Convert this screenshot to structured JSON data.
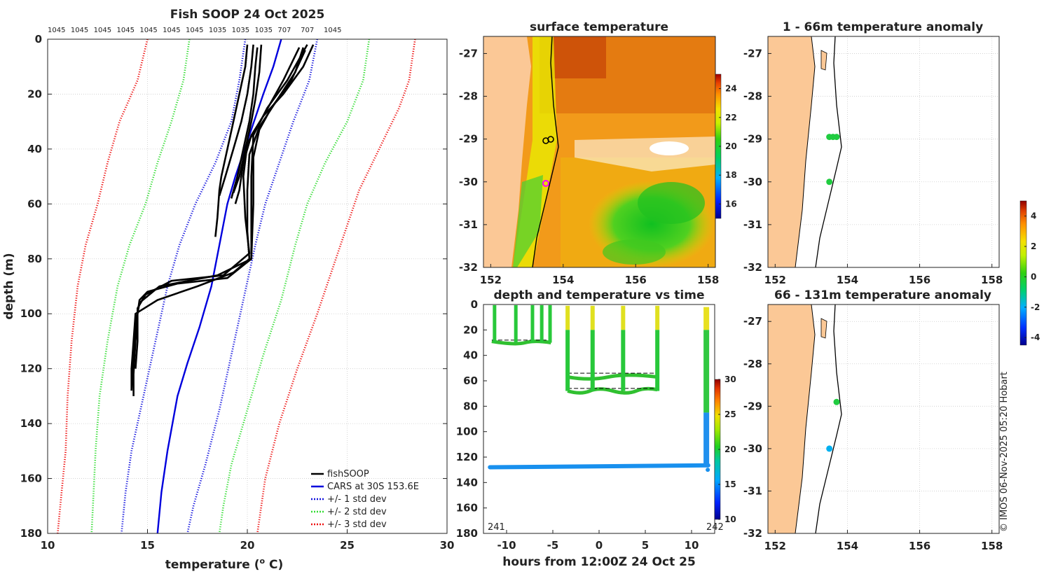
{
  "profile_panel": {
    "title": "Fish SOOP 24 Oct 2025",
    "xlabel": "temperature (",
    "xlabel_sup": "o",
    "xlabel_end": " C)",
    "ylabel": "depth (m)",
    "top_labels": [
      "1045",
      "1045",
      "1045",
      "1045",
      "1045",
      "1045",
      "1045",
      "1035",
      "1035",
      "1035",
      "707",
      "707",
      "1045"
    ],
    "legend": {
      "fishsoop": "fishSOOP",
      "cars": "CARS at 30S 153.6E",
      "std1": "+/- 1 std dev",
      "std2": "+/- 2 std dev",
      "std3": "+/- 3 std dev"
    }
  },
  "sst_panel": {
    "title": "surface temperature"
  },
  "anom1_panel": {
    "title": "1 - 66m temperature anomaly"
  },
  "anom2_panel": {
    "title": "66 - 131m temperature anomaly"
  },
  "time_panel": {
    "title": "depth and temperature vs time",
    "xlabel": "hours from 12:00Z 24 Oct 25",
    "day_start": "241",
    "day_end": "242"
  },
  "footer": {
    "credit": "© IMOS 06-Nov-2025 05:20 Hobart"
  },
  "colors": {
    "fishsoop": "#000000",
    "cars": "#0000dd",
    "std1": "#1010dd",
    "std2": "#33dd33",
    "std3": "#ee1111",
    "land": "#fbc896",
    "coast": "#000000"
  },
  "chart_data": [
    {
      "type": "line",
      "name": "temperature-profiles",
      "xlabel": "temperature (o C)",
      "ylabel": "depth (m)",
      "xlim": [
        10,
        30
      ],
      "ylim": [
        0,
        180
      ],
      "xticks": [
        10,
        15,
        20,
        25,
        30
      ],
      "yticks": [
        0,
        20,
        40,
        60,
        80,
        100,
        120,
        140,
        160,
        180
      ],
      "grid": true,
      "legend_position": "bottom-right",
      "series": [
        {
          "name": "CARS at 30S 153.6E",
          "style": "solid",
          "color": "#0000dd",
          "points": [
            [
              21.7,
              0
            ],
            [
              21.3,
              10
            ],
            [
              20.8,
              20
            ],
            [
              20.1,
              35
            ],
            [
              19.4,
              50
            ],
            [
              19.0,
              60
            ],
            [
              18.6,
              75
            ],
            [
              18.2,
              90
            ],
            [
              17.6,
              105
            ],
            [
              17.0,
              118
            ],
            [
              16.5,
              130
            ],
            [
              16.0,
              150
            ],
            [
              15.7,
              165
            ],
            [
              15.5,
              180
            ]
          ]
        },
        {
          "name": "-1 std",
          "style": "dotted",
          "color": "#1010dd",
          "points": [
            [
              19.9,
              0
            ],
            [
              19.6,
              15
            ],
            [
              19.2,
              30
            ],
            [
              18.4,
              45
            ],
            [
              17.4,
              60
            ],
            [
              16.6,
              75
            ],
            [
              16.0,
              90
            ],
            [
              15.4,
              110
            ],
            [
              14.8,
              130
            ],
            [
              14.2,
              150
            ],
            [
              13.9,
              165
            ],
            [
              13.7,
              180
            ]
          ]
        },
        {
          "name": "+1 std",
          "style": "dotted",
          "color": "#1010dd",
          "points": [
            [
              23.5,
              0
            ],
            [
              23.1,
              15
            ],
            [
              22.3,
              30
            ],
            [
              21.6,
              45
            ],
            [
              20.9,
              60
            ],
            [
              20.4,
              75
            ],
            [
              19.8,
              95
            ],
            [
              19.2,
              115
            ],
            [
              18.6,
              135
            ],
            [
              17.9,
              155
            ],
            [
              17.3,
              170
            ],
            [
              17.0,
              180
            ]
          ]
        },
        {
          "name": "-2 std",
          "style": "dotted",
          "color": "#33dd33",
          "points": [
            [
              17.1,
              0
            ],
            [
              16.8,
              15
            ],
            [
              16.2,
              30
            ],
            [
              15.5,
              45
            ],
            [
              14.9,
              60
            ],
            [
              14.1,
              75
            ],
            [
              13.5,
              90
            ],
            [
              13.0,
              110
            ],
            [
              12.6,
              130
            ],
            [
              12.4,
              150
            ],
            [
              12.3,
              165
            ],
            [
              12.2,
              180
            ]
          ]
        },
        {
          "name": "+2 std",
          "style": "dotted",
          "color": "#33dd33",
          "points": [
            [
              26.1,
              0
            ],
            [
              25.8,
              15
            ],
            [
              25.0,
              30
            ],
            [
              23.9,
              45
            ],
            [
              23.0,
              60
            ],
            [
              22.4,
              75
            ],
            [
              21.7,
              95
            ],
            [
              20.8,
              115
            ],
            [
              20.0,
              135
            ],
            [
              19.2,
              155
            ],
            [
              18.8,
              170
            ],
            [
              18.6,
              180
            ]
          ]
        },
        {
          "name": "-3 std",
          "style": "dotted",
          "color": "#ee1111",
          "points": [
            [
              15.0,
              0
            ],
            [
              14.5,
              15
            ],
            [
              13.6,
              30
            ],
            [
              13.0,
              45
            ],
            [
              12.5,
              60
            ],
            [
              11.9,
              75
            ],
            [
              11.5,
              90
            ],
            [
              11.2,
              110
            ],
            [
              11.0,
              130
            ],
            [
              10.9,
              150
            ],
            [
              10.7,
              165
            ],
            [
              10.5,
              180
            ]
          ]
        },
        {
          "name": "+3 std",
          "style": "dotted",
          "color": "#ee1111",
          "points": [
            [
              28.4,
              0
            ],
            [
              28.1,
              15
            ],
            [
              27.6,
              25
            ],
            [
              26.6,
              40
            ],
            [
              25.6,
              55
            ],
            [
              24.9,
              70
            ],
            [
              24.2,
              85
            ],
            [
              23.5,
              100
            ],
            [
              22.5,
              120
            ],
            [
              21.6,
              140
            ],
            [
              20.9,
              160
            ],
            [
              20.5,
              180
            ]
          ]
        },
        {
          "name": "fishSOOP",
          "style": "solid",
          "color": "#000000",
          "width": 2.6,
          "profiles": [
            [
              [
                20.0,
                2
              ],
              [
                19.9,
                10
              ],
              [
                19.6,
                20
              ],
              [
                19.3,
                30
              ],
              [
                19.0,
                40
              ],
              [
                18.7,
                50
              ],
              [
                18.6,
                55
              ],
              [
                18.5,
                65
              ],
              [
                18.4,
                72
              ]
            ],
            [
              [
                20.3,
                2
              ],
              [
                20.2,
                10
              ],
              [
                20.0,
                20
              ],
              [
                19.7,
                30
              ],
              [
                19.3,
                40
              ],
              [
                18.9,
                50
              ],
              [
                18.6,
                57
              ]
            ],
            [
              [
                20.5,
                3
              ],
              [
                20.4,
                10
              ],
              [
                20.3,
                20
              ],
              [
                20.1,
                30
              ],
              [
                19.8,
                40
              ],
              [
                19.5,
                50
              ],
              [
                19.2,
                58
              ]
            ],
            [
              [
                20.7,
                2
              ],
              [
                20.6,
                12
              ],
              [
                20.4,
                22
              ],
              [
                20.2,
                30
              ],
              [
                19.9,
                40
              ],
              [
                19.6,
                50
              ],
              [
                19.3,
                56
              ]
            ],
            [
              [
                23.3,
                2
              ],
              [
                22.8,
                10
              ],
              [
                21.8,
                20
              ],
              [
                20.8,
                28
              ],
              [
                20.2,
                35
              ],
              [
                19.8,
                45
              ],
              [
                19.6,
                55
              ],
              [
                19.4,
                60
              ]
            ],
            [
              [
                22.8,
                3
              ],
              [
                22.4,
                12
              ],
              [
                21.5,
                22
              ],
              [
                20.6,
                32
              ],
              [
                20.1,
                42
              ],
              [
                20.0,
                55
              ],
              [
                20.0,
                70
              ],
              [
                20.1,
                80
              ],
              [
                19.3,
                85
              ],
              [
                17.5,
                90
              ],
              [
                15.5,
                95
              ],
              [
                14.4,
                100
              ],
              [
                14.3,
                110
              ],
              [
                14.2,
                120
              ],
              [
                14.2,
                128
              ]
            ],
            [
              [
                23.0,
                2
              ],
              [
                22.0,
                15
              ],
              [
                21.0,
                25
              ],
              [
                20.3,
                35
              ],
              [
                20.2,
                50
              ],
              [
                20.2,
                65
              ],
              [
                20.2,
                80
              ],
              [
                19.0,
                87
              ],
              [
                16.5,
                89
              ],
              [
                15.0,
                92
              ],
              [
                14.6,
                95
              ],
              [
                14.5,
                100
              ],
              [
                14.4,
                110
              ],
              [
                14.3,
                122
              ],
              [
                14.3,
                130
              ]
            ],
            [
              [
                22.6,
                3
              ],
              [
                21.8,
                15
              ],
              [
                20.8,
                28
              ],
              [
                20.0,
                38
              ],
              [
                19.8,
                50
              ],
              [
                19.9,
                65
              ],
              [
                20.1,
                78
              ],
              [
                18.8,
                86
              ],
              [
                16.2,
                88
              ],
              [
                14.9,
                93
              ],
              [
                14.5,
                98
              ],
              [
                14.5,
                110
              ],
              [
                14.4,
                120
              ]
            ],
            [
              [
                22.9,
                4
              ],
              [
                22.2,
                15
              ],
              [
                21.2,
                25
              ],
              [
                20.6,
                33
              ],
              [
                20.3,
                43
              ],
              [
                20.3,
                60
              ],
              [
                20.2,
                80
              ],
              [
                18.5,
                86
              ],
              [
                15.6,
                90
              ],
              [
                14.6,
                96
              ],
              [
                14.4,
                104
              ],
              [
                14.3,
                115
              ],
              [
                14.2,
                128
              ]
            ]
          ]
        }
      ]
    },
    {
      "type": "heatmap",
      "name": "surface-temperature-map",
      "title": "surface temperature",
      "xticks": [
        152,
        154,
        156,
        158
      ],
      "yticks": [
        -27,
        -28,
        -29,
        -30,
        -31,
        -32
      ],
      "xlim": [
        151.8,
        158.2
      ],
      "ylim": [
        -32,
        -26.6
      ],
      "colorbar_ticks": [
        16,
        18,
        20,
        22,
        24
      ],
      "colorbar_range": [
        15,
        25
      ],
      "markers": [
        {
          "lon": 153.6,
          "lat": -30.0,
          "color": "#ff00ff"
        },
        {
          "lon": 153.5,
          "lat": -28.95,
          "color": "#000000"
        },
        {
          "lon": 153.7,
          "lat": -28.9,
          "color": "#000000"
        }
      ]
    },
    {
      "type": "scatter",
      "name": "anomaly-1-66m-map",
      "title": "1 - 66m temperature anomaly",
      "xticks": [
        152,
        154,
        156,
        158
      ],
      "yticks": [
        -27,
        -28,
        -29,
        -30,
        -31,
        -32
      ],
      "points": [
        {
          "lon": 153.5,
          "lat": -28.95,
          "anomaly": 0.3
        },
        {
          "lon": 153.6,
          "lat": -28.95,
          "anomaly": 0.4
        },
        {
          "lon": 153.7,
          "lat": -28.95,
          "anomaly": 0.3
        },
        {
          "lon": 153.5,
          "lat": -30.0,
          "anomaly": 0.5
        }
      ]
    },
    {
      "type": "scatter",
      "name": "anomaly-66-131m-map",
      "title": "66 - 131m temperature anomaly",
      "xticks": [
        152,
        154,
        156,
        158
      ],
      "yticks": [
        -27,
        -28,
        -29,
        -30,
        -31,
        -32
      ],
      "points": [
        {
          "lon": 153.7,
          "lat": -28.9,
          "anomaly": 0.3
        },
        {
          "lon": 153.5,
          "lat": -30.0,
          "anomaly": -1.3
        }
      ]
    },
    {
      "type": "scatter",
      "name": "depth-time",
      "title": "depth and temperature vs time",
      "xlabel": "hours from 12:00Z 24 Oct 25",
      "xlim": [
        -12.5,
        12.5
      ],
      "ylim": [
        0,
        180
      ],
      "xticks": [
        -10,
        -5,
        0,
        5,
        10
      ],
      "yticks": [
        0,
        20,
        40,
        60,
        80,
        100,
        120,
        140,
        160,
        180
      ],
      "colorbar_ticks": [
        10,
        15,
        20,
        25,
        30
      ],
      "colorbar_range": [
        10,
        30
      ],
      "casts_shallow_hours": [
        -11.3,
        -9.0,
        -7.2,
        -6.2,
        -5.3
      ],
      "casts_shallow_bottom": 30,
      "casts_mid_hours": [
        -3.4,
        -0.7,
        2.6,
        6.3
      ],
      "casts_mid_bottom": 68,
      "long_deployment": {
        "start_hour": -11.8,
        "end_hour": 11.8,
        "depth": 128
      },
      "final_cast_hour": 11.6
    },
    {
      "type": "heatmap",
      "name": "anomaly-colorbar",
      "colorbar_ticks": [
        -4,
        -2,
        0,
        2,
        4
      ],
      "colorbar_range": [
        -4.5,
        5
      ]
    }
  ]
}
